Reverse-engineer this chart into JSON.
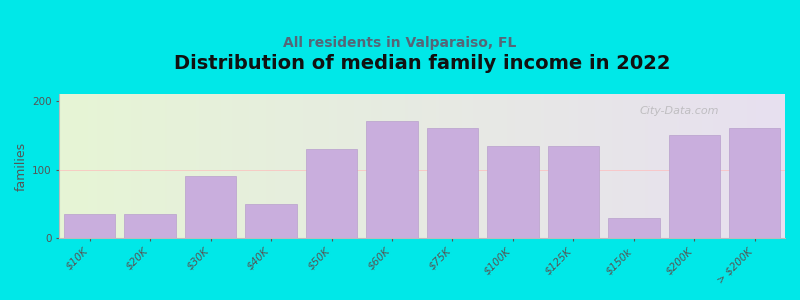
{
  "title": "Distribution of median family income in 2022",
  "subtitle": "All residents in Valparaiso, FL",
  "ylabel": "families",
  "categories": [
    "$10K",
    "$20K",
    "$30K",
    "$40K",
    "$50K",
    "$60K",
    "$75K",
    "$100K",
    "$125K",
    "$150k",
    "$200K",
    "> $200K"
  ],
  "values": [
    35,
    35,
    90,
    50,
    130,
    170,
    160,
    135,
    135,
    30,
    150,
    160
  ],
  "bar_color": "#c9aedd",
  "bar_edge_color": "#b8a0cc",
  "background_color": "#00e8e8",
  "plot_bg_left": "#e6f5d5",
  "plot_bg_right": "#e8e0f0",
  "ylim": [
    0,
    210
  ],
  "yticks": [
    0,
    100,
    200
  ],
  "title_fontsize": 14,
  "subtitle_fontsize": 10,
  "ylabel_fontsize": 9,
  "tick_fontsize": 7.5,
  "watermark": "City-Data.com"
}
